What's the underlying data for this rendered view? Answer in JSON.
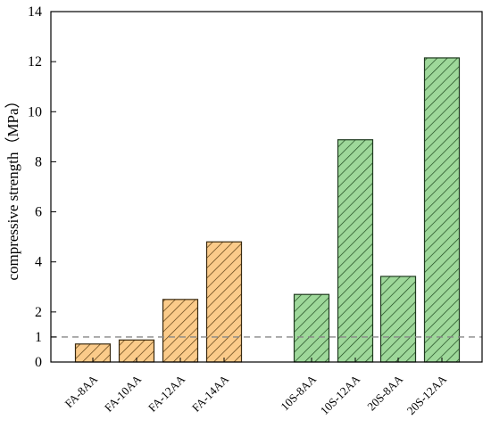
{
  "chart_data": {
    "type": "bar",
    "title": "",
    "xlabel": "",
    "ylabel": "compressive strength（MPa）",
    "ylim": [
      0,
      14
    ],
    "yticks": [
      0,
      1,
      2,
      4,
      6,
      8,
      10,
      12,
      14
    ],
    "grid": false,
    "reference_line": {
      "y": 1,
      "style": "dashed",
      "color": "#888888"
    },
    "categories": [
      "FA-8AA",
      "FA-10AA",
      "FA-12AA",
      "FA-14AA",
      "10S-8AA",
      "10S-12AA",
      "20S-8AA",
      "20S-12AA"
    ],
    "values": [
      0.72,
      0.88,
      2.5,
      4.8,
      2.7,
      8.88,
      3.42,
      12.15
    ],
    "groups": [
      {
        "members": [
          "FA-8AA",
          "FA-10AA",
          "FA-12AA",
          "FA-14AA"
        ],
        "fill": "#FBCB8A",
        "stroke": "#3a2a10",
        "hatch": "diagonal"
      },
      {
        "members": [
          "10S-8AA",
          "10S-12AA",
          "20S-8AA",
          "20S-12AA"
        ],
        "fill": "#9ED89A",
        "stroke": "#1f3a1f",
        "hatch": "diagonal"
      }
    ]
  }
}
